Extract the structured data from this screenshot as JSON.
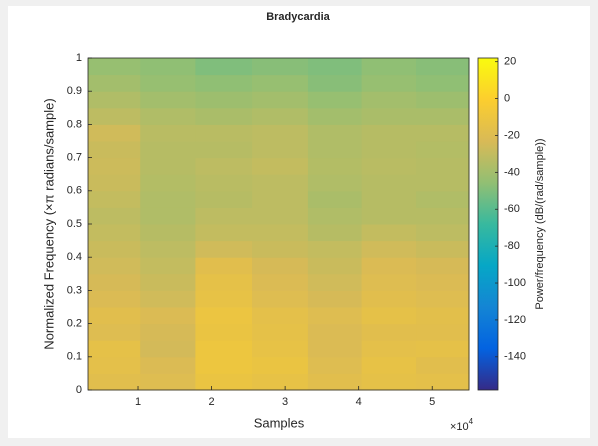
{
  "chart_data": {
    "type": "heatmap",
    "title": "Bradycardia",
    "x_label": "Samples",
    "y_label": "Normalized Frequency (×π radians/sample)",
    "colorbar_label": "Power/frequency (dB/(rad/sample))",
    "x_multiplier_base": "×10",
    "x_multiplier_exp": "4",
    "colormap": "parula",
    "xlim": [
      0.32,
      5.5
    ],
    "xticks": [
      1,
      2,
      3,
      4,
      5
    ],
    "ylim": [
      0,
      1
    ],
    "yticks": [
      0,
      0.1,
      0.2,
      0.3,
      0.4,
      0.5,
      0.6,
      0.7,
      0.8,
      0.9,
      1
    ],
    "clim": [
      -158,
      22
    ],
    "cticks": [
      20,
      0,
      -20,
      -40,
      -60,
      -80,
      -100,
      -120,
      -140
    ],
    "x_bins": [
      0.32,
      1.03,
      1.78,
      2.55,
      3.31,
      4.04,
      4.78,
      5.5
    ],
    "y_bins": [
      0,
      0.05,
      0.1,
      0.15,
      0.2,
      0.25,
      0.3,
      0.35,
      0.4,
      0.45,
      0.5,
      0.55,
      0.6,
      0.65,
      0.7,
      0.75,
      0.8,
      0.85,
      0.9,
      0.95,
      1
    ],
    "values": [
      [
        -18,
        -20,
        -12,
        -14,
        -18,
        -15,
        -16
      ],
      [
        -16,
        -22,
        -10,
        -12,
        -20,
        -14,
        -18
      ],
      [
        -15,
        -25,
        -10,
        -14,
        -22,
        -16,
        -15
      ],
      [
        -20,
        -24,
        -12,
        -15,
        -22,
        -18,
        -18
      ],
      [
        -18,
        -22,
        -11,
        -16,
        -20,
        -15,
        -17
      ],
      [
        -22,
        -26,
        -14,
        -20,
        -24,
        -18,
        -20
      ],
      [
        -24,
        -28,
        -15,
        -22,
        -26,
        -20,
        -22
      ],
      [
        -26,
        -30,
        -18,
        -24,
        -28,
        -22,
        -24
      ],
      [
        -28,
        -32,
        -26,
        -28,
        -30,
        -26,
        -28
      ],
      [
        -30,
        -34,
        -30,
        -30,
        -34,
        -30,
        -32
      ],
      [
        -32,
        -36,
        -32,
        -32,
        -36,
        -34,
        -34
      ],
      [
        -30,
        -36,
        -34,
        -32,
        -38,
        -34,
        -36
      ],
      [
        -28,
        -35,
        -33,
        -32,
        -36,
        -34,
        -34
      ],
      [
        -27,
        -34,
        -32,
        -30,
        -35,
        -33,
        -34
      ],
      [
        -28,
        -34,
        -34,
        -32,
        -36,
        -34,
        -35
      ],
      [
        -26,
        -33,
        -33,
        -32,
        -36,
        -34,
        -34
      ],
      [
        -32,
        -36,
        -38,
        -36,
        -40,
        -38,
        -38
      ],
      [
        -36,
        -40,
        -42,
        -40,
        -44,
        -40,
        -42
      ],
      [
        -40,
        -44,
        -46,
        -44,
        -48,
        -44,
        -46
      ],
      [
        -44,
        -46,
        -50,
        -48,
        -50,
        -46,
        -48
      ]
    ]
  }
}
